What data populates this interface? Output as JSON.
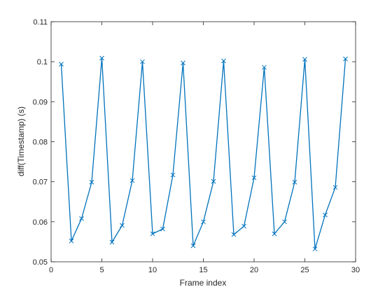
{
  "chart_data": {
    "type": "line",
    "xlabel": "Frame index",
    "ylabel": "diff(Timestamp) (s)",
    "x": [
      1,
      2,
      3,
      4,
      5,
      6,
      7,
      8,
      9,
      10,
      11,
      12,
      13,
      14,
      15,
      16,
      17,
      18,
      19,
      20,
      21,
      22,
      23,
      24,
      25,
      26,
      27,
      28,
      29
    ],
    "series": [
      {
        "color": "#0072bd",
        "marker": "x",
        "values": [
          0.0994,
          0.0552,
          0.0608,
          0.0699,
          0.1009,
          0.0549,
          0.0591,
          0.0703,
          0.1,
          0.057,
          0.0582,
          0.0717,
          0.0997,
          0.054,
          0.06,
          0.0701,
          0.1002,
          0.0568,
          0.0589,
          0.071,
          0.0986,
          0.057,
          0.06,
          0.0699,
          0.1006,
          0.0532,
          0.0617,
          0.0686,
          0.1007
        ]
      }
    ],
    "xlim": [
      0,
      30
    ],
    "xticks": [
      0,
      5,
      10,
      15,
      20,
      25,
      30
    ],
    "ylim": [
      0.05,
      0.11
    ],
    "yticks": [
      0.05,
      0.06,
      0.07,
      0.08,
      0.09,
      0.1,
      0.11
    ],
    "box": true
  }
}
